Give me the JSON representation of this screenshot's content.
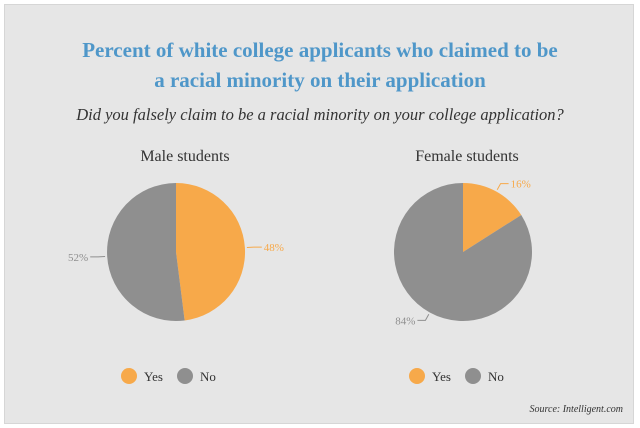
{
  "title_line1": "Percent of white college applicants who claimed to be",
  "title_line2": "a racial minority on their application",
  "subtitle": "Did you falsely claim to be a racial minority on your college application?",
  "source": "Source: Intelligent.com",
  "colors": {
    "yes": "#f7a94a",
    "no": "#8f8f8f"
  },
  "chart_data": [
    {
      "type": "pie",
      "title": "Male students",
      "labels": [
        "Yes",
        "No"
      ],
      "values": [
        48,
        52
      ],
      "value_labels": [
        "48%",
        "52%"
      ],
      "legend": [
        "Yes",
        "No"
      ]
    },
    {
      "type": "pie",
      "title": "Female students",
      "labels": [
        "Yes",
        "No"
      ],
      "values": [
        16,
        84
      ],
      "value_labels": [
        "16%",
        "84%"
      ],
      "legend": [
        "Yes",
        "No"
      ]
    }
  ]
}
